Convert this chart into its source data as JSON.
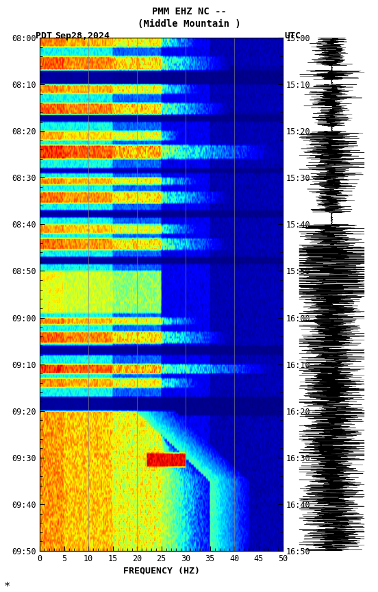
{
  "title_line1": "PMM EHZ NC --",
  "title_line2": "(Middle Mountain )",
  "date_label": "Sep28,2024",
  "pdt_label": "PDT",
  "utc_label": "UTC",
  "freq_min": 0,
  "freq_max": 50,
  "freq_label": "FREQUENCY (HZ)",
  "freq_ticks": [
    0,
    5,
    10,
    15,
    20,
    25,
    30,
    35,
    40,
    45,
    50
  ],
  "pdt_ticks": [
    "08:00",
    "08:10",
    "08:20",
    "08:30",
    "08:40",
    "08:50",
    "09:00",
    "09:10",
    "09:20",
    "09:30",
    "09:40",
    "09:50"
  ],
  "utc_ticks": [
    "15:00",
    "15:10",
    "15:20",
    "15:30",
    "15:40",
    "15:50",
    "16:00",
    "16:10",
    "16:20",
    "16:30",
    "16:40",
    "16:50"
  ],
  "fig_bg": "#ffffff",
  "colormap": "jet",
  "vertical_lines_freq": [
    10,
    20,
    30,
    40
  ],
  "vertical_line_color": "#888888",
  "n_time": 220,
  "n_freq": 300,
  "seed": 42
}
